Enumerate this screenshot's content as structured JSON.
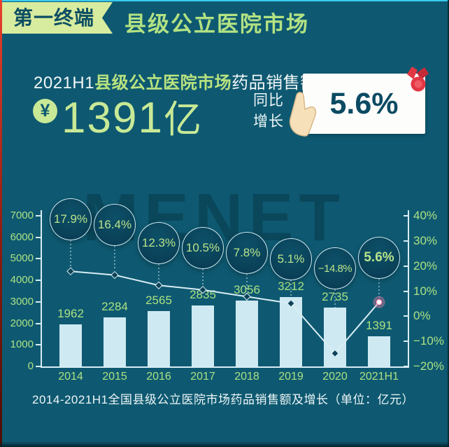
{
  "header": {
    "badge": "第一终端",
    "title": "县级公立医院市场"
  },
  "stat": {
    "line_prefix": "2021H1",
    "line_highlight": "县级公立医院市场",
    "line_suffix": "药品销售额达",
    "currency_symbol": "¥",
    "amount": "1391",
    "amount_unit": "亿",
    "growth_label_line1": "同比",
    "growth_label_line2": "增长",
    "growth_value": "5.6%"
  },
  "chart_data": {
    "type": "bar",
    "subtype": "bar+line combo",
    "categories": [
      "2014",
      "2015",
      "2016",
      "2017",
      "2018",
      "2019",
      "2020",
      "2021H1"
    ],
    "series": [
      {
        "name": "药品销售额(亿元)",
        "type": "bar",
        "values": [
          1962,
          2284,
          2565,
          2835,
          3056,
          3212,
          2735,
          1391
        ]
      },
      {
        "name": "同比增长(%)",
        "type": "line",
        "values": [
          17.9,
          16.4,
          12.3,
          10.5,
          7.8,
          5.1,
          -14.8,
          5.6
        ],
        "labels": [
          "17.9%",
          "16.4%",
          "12.3%",
          "10.5%",
          "7.8%",
          "5.1%",
          "−14.8%",
          "5.6%"
        ]
      }
    ],
    "left_axis": {
      "min": 0,
      "max": 7000,
      "ticks": [
        0,
        1000,
        2000,
        3000,
        4000,
        5000,
        6000,
        7000
      ]
    },
    "right_axis": {
      "min": -20,
      "max": 40,
      "ticks": [
        40,
        30,
        20,
        10,
        0,
        -10,
        -20
      ],
      "tick_labels": [
        "40%",
        "30%",
        "20%",
        "10%",
        "0%",
        "−10%",
        "−20%"
      ]
    },
    "grid": false,
    "legend": "none",
    "caption": "2014-2021H1全国县级公立医院市场药品销售额及增长（单位：亿元）",
    "watermark": "MENET"
  },
  "colors": {
    "background": "#0e5971",
    "accent_green": "#b9e38a",
    "bar_fill": "#cfe9f2",
    "line": "#d8edf3",
    "banner_bg": "#d8ec9f",
    "banner_text": "#0d4e63",
    "card_bg": "#fdfdfb",
    "card_text": "#0b4a63",
    "medal_red": "#e23744",
    "edge_red": "#c2271a",
    "top_line_cyan": "#38cbee",
    "highlight_marker_pink": "#f27fa5"
  }
}
